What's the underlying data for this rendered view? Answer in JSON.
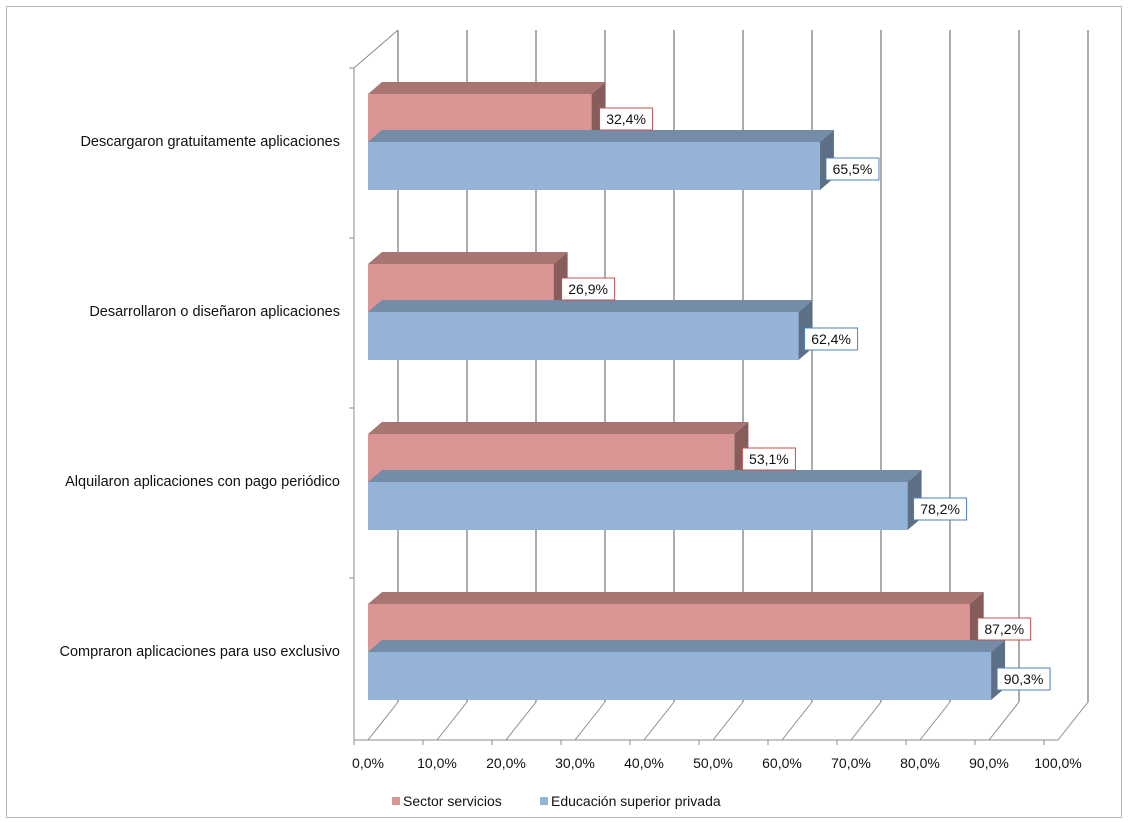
{
  "chart_data": {
    "type": "bar",
    "orientation": "horizontal",
    "style": "3d-clustered",
    "categories": [
      "Descargaron gratuitamente aplicaciones",
      "Desarrollaron o diseñaron aplicaciones",
      "Alquilaron aplicaciones con pago periódico",
      "Compraron aplicaciones para uso exclusivo"
    ],
    "series": [
      {
        "name": "Sector servicios",
        "color": "#d99694",
        "values": [
          32.4,
          26.9,
          53.1,
          87.2
        ],
        "labels": [
          "32,4%",
          "26,9%",
          "53,1%",
          "87,2%"
        ]
      },
      {
        "name": "Educación superior privada",
        "color": "#95b3d7",
        "values": [
          65.5,
          62.4,
          78.2,
          90.3
        ],
        "labels": [
          "65,5%",
          "62,4%",
          "78,2%",
          "90,3%"
        ]
      }
    ],
    "xlim": [
      0,
      100
    ],
    "xticks": [
      "0,0%",
      "10,0%",
      "20,0%",
      "30,0%",
      "40,0%",
      "50,0%",
      "60,0%",
      "70,0%",
      "80,0%",
      "90,0%",
      "100,0%"
    ],
    "grid": true,
    "legend_position": "bottom",
    "title": "",
    "xlabel": "",
    "ylabel": ""
  }
}
